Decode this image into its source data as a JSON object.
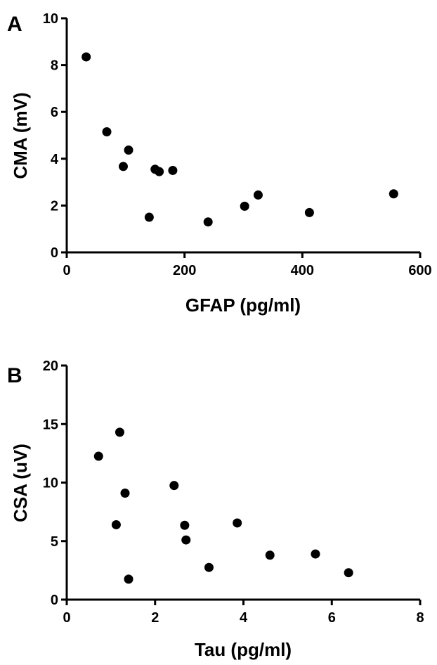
{
  "chart_data": [
    {
      "type": "scatter",
      "panel": "A",
      "xlabel": "GFAP (pg/ml)",
      "ylabel": "CMA (mV)",
      "xlim": [
        0,
        600
      ],
      "ylim": [
        0,
        10
      ],
      "xticks": [
        "0",
        "200",
        "400",
        "600"
      ],
      "yticks": [
        "0",
        "2",
        "4",
        "6",
        "8",
        "10"
      ],
      "points": [
        {
          "x": 33,
          "y": 8.35
        },
        {
          "x": 68,
          "y": 5.15
        },
        {
          "x": 96,
          "y": 3.67
        },
        {
          "x": 105,
          "y": 4.37
        },
        {
          "x": 140,
          "y": 1.5
        },
        {
          "x": 150,
          "y": 3.55
        },
        {
          "x": 157,
          "y": 3.45
        },
        {
          "x": 180,
          "y": 3.5
        },
        {
          "x": 240,
          "y": 1.3
        },
        {
          "x": 302,
          "y": 1.97
        },
        {
          "x": 325,
          "y": 2.45
        },
        {
          "x": 412,
          "y": 1.7
        },
        {
          "x": 555,
          "y": 2.5
        }
      ]
    },
    {
      "type": "scatter",
      "panel": "B",
      "xlabel": "Tau (pg/ml)",
      "ylabel": "CSA (uV)",
      "xlim": [
        0,
        8
      ],
      "ylim": [
        0,
        20
      ],
      "xticks": [
        "0",
        "2",
        "4",
        "6",
        "8"
      ],
      "yticks": [
        "0",
        "5",
        "10",
        "15",
        "20"
      ],
      "points": [
        {
          "x": 0.72,
          "y": 12.25
        },
        {
          "x": 1.12,
          "y": 6.4
        },
        {
          "x": 1.2,
          "y": 14.3
        },
        {
          "x": 1.32,
          "y": 9.1
        },
        {
          "x": 1.4,
          "y": 1.75
        },
        {
          "x": 2.43,
          "y": 9.75
        },
        {
          "x": 2.67,
          "y": 6.35
        },
        {
          "x": 2.7,
          "y": 5.1
        },
        {
          "x": 3.22,
          "y": 2.75
        },
        {
          "x": 3.86,
          "y": 6.55
        },
        {
          "x": 4.6,
          "y": 3.8
        },
        {
          "x": 5.63,
          "y": 3.9
        },
        {
          "x": 6.38,
          "y": 2.3
        }
      ]
    }
  ]
}
